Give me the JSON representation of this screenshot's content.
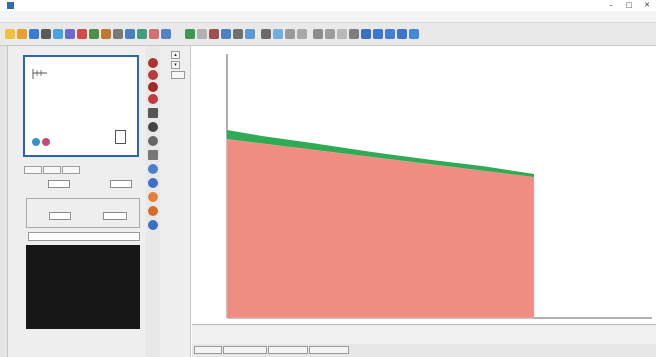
{
  "window": {
    "title": "",
    "controls": [
      "–",
      "□",
      "✕"
    ]
  },
  "menu": {
    "items": [
      "",
      "",
      "",
      "",
      "",
      "",
      "",
      "",
      ""
    ]
  },
  "left_panel": {
    "vertical_tabs": [
      "",
      ""
    ],
    "preview_label": "",
    "tabs": [
      "",
      "",
      ""
    ],
    "field_a_label": "",
    "field_b_label": "",
    "group_title": "",
    "group_a_label": "",
    "group_b_label": "",
    "option_label": ""
  },
  "zoom": {
    "value": ""
  },
  "plot": {
    "colors": {
      "red_region": "#f08d82",
      "green_layer": "#2faa55",
      "axis": "#333333"
    }
  },
  "status": {
    "left1": "",
    "left2": "",
    "mid1": "",
    "mid2": "",
    "right1": "",
    "right2": ""
  },
  "bottom_tabs": [
    "",
    "",
    "",
    ""
  ]
}
